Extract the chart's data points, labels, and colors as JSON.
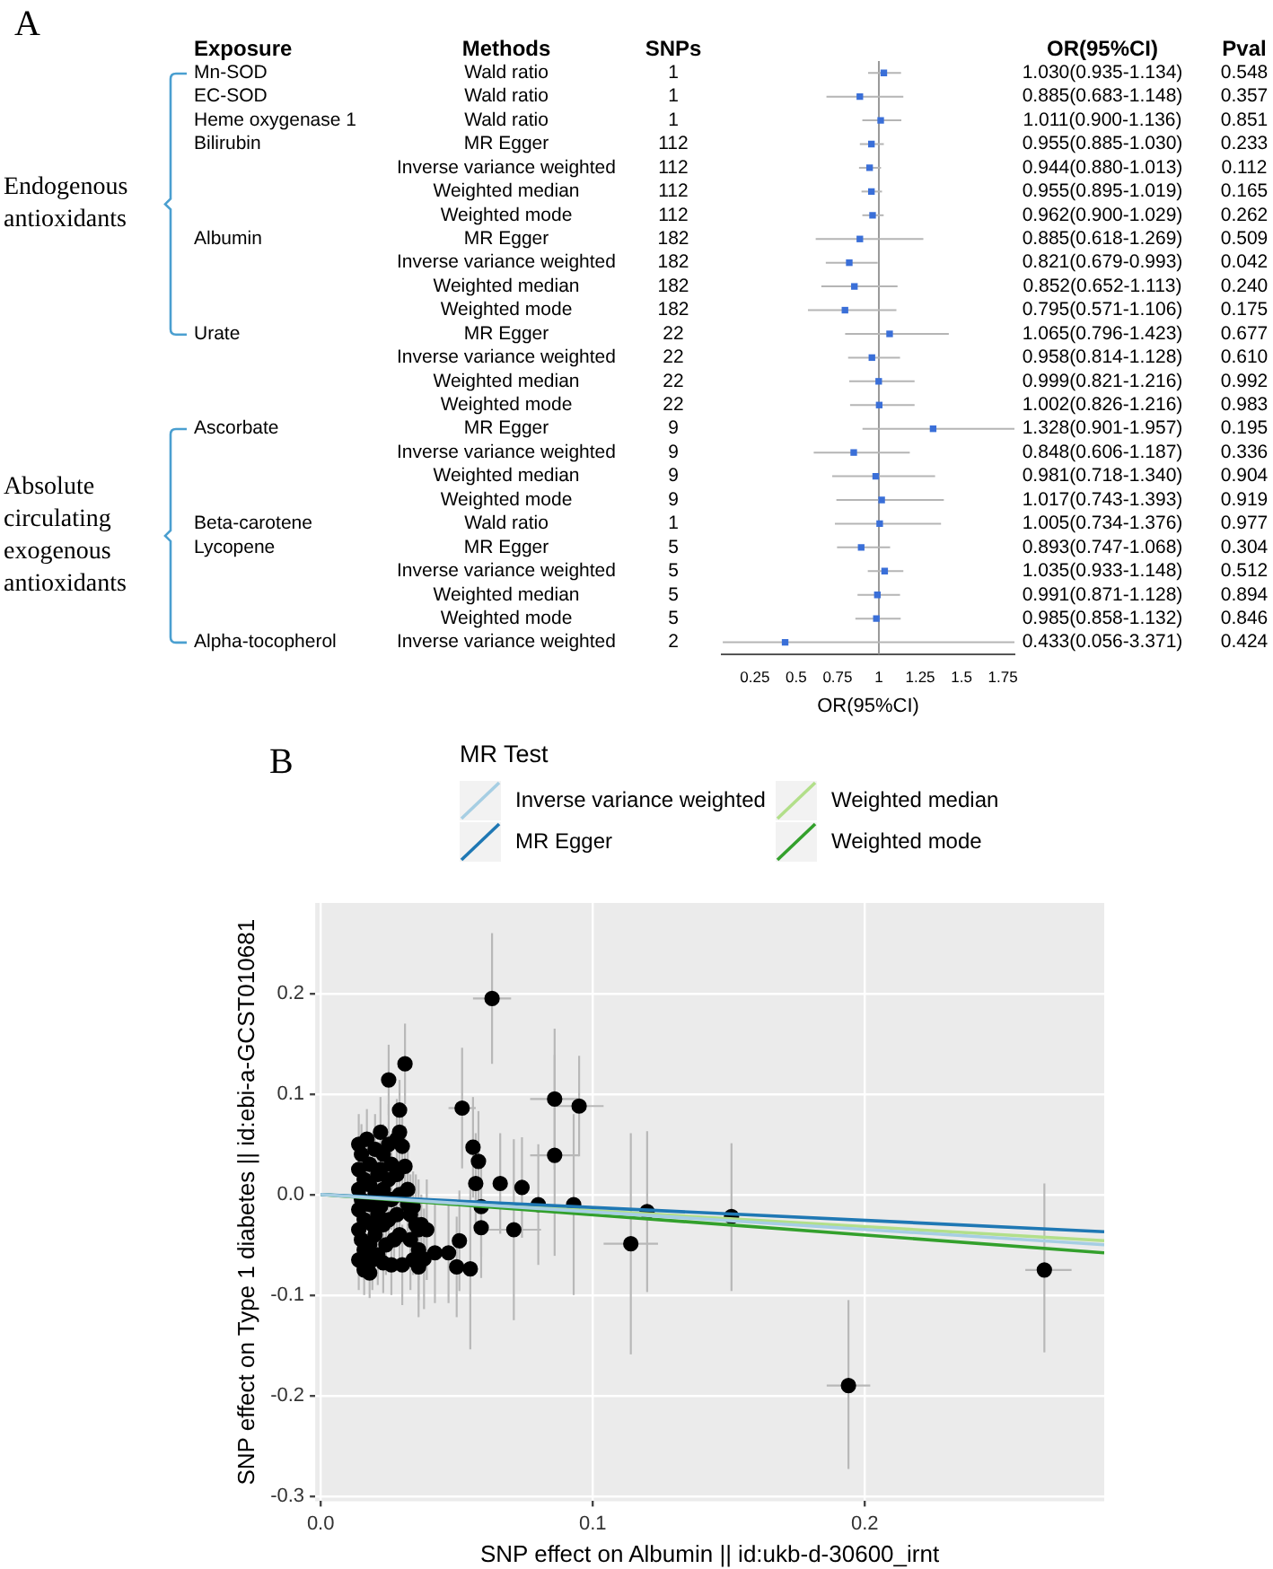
{
  "chart_data": [
    {
      "type": "scatter",
      "orientation": "horizontal",
      "marker": "square",
      "xlabel": "OR(95%CI)",
      "xlim": [
        0.05,
        1.82
      ],
      "xticks": [
        0.25,
        0.5,
        0.75,
        1,
        1.25,
        1.5,
        1.75
      ],
      "ref_lines": [
        {
          "axis": "x",
          "value": 1,
          "color": "#999999"
        }
      ],
      "categories": [
        "Wald ratio",
        "Wald ratio",
        "Wald ratio",
        "MR Egger",
        "Inverse variance weighted",
        "Weighted median",
        "Weighted mode",
        "MR Egger",
        "Inverse variance weighted",
        "Weighted median",
        "Weighted mode",
        "MR Egger",
        "Inverse variance weighted",
        "Weighted median",
        "Weighted mode",
        "MR Egger",
        "Inverse variance weighted",
        "Weighted median",
        "Weighted mode",
        "Wald ratio",
        "MR Egger",
        "Inverse variance weighted",
        "Weighted median",
        "Weighted mode",
        "Inverse variance weighted"
      ],
      "annotations": [
        "A",
        "Exposure",
        "Methods",
        "SNPs",
        "OR(95%CI)",
        "Pval",
        "Endogenous antioxidants",
        "Absolute circulating exogenous antioxidants",
        "1",
        "1",
        "1",
        "112",
        "112",
        "112",
        "112",
        "182",
        "182",
        "182",
        "182",
        "22",
        "22",
        "22",
        "22",
        "9",
        "9",
        "9",
        "9",
        "1",
        "5",
        "5",
        "5",
        "5",
        "2",
        "0.548",
        "0.357",
        "0.851",
        "0.233",
        "0.112",
        "0.165",
        "0.262",
        "0.509",
        "0.042",
        "0.240",
        "0.175",
        "0.677",
        "0.610",
        "0.992",
        "0.983",
        "0.195",
        "0.336",
        "0.904",
        "0.919",
        "0.977",
        "0.304",
        "0.512",
        "0.894",
        "0.846",
        "0.424",
        "Mn-SOD",
        "EC-SOD",
        "Heme oxygenase 1",
        "Bilirubin",
        "Albumin",
        "Urate",
        "Ascorbate",
        "Beta-carotene",
        "Lycopene",
        "Alpha-tocopherol",
        "1.030(0.935-1.134)",
        "0.885(0.683-1.148)",
        "1.011(0.900-1.136)",
        "0.955(0.885-1.030)",
        "0.944(0.880-1.013)",
        "0.955(0.895-1.019)",
        "0.962(0.900-1.029)",
        "0.885(0.618-1.269)",
        "0.821(0.679-0.993)",
        "0.852(0.652-1.113)",
        "0.795(0.571-1.106)",
        "1.065(0.796-1.423)",
        "0.958(0.814-1.128)",
        "0.999(0.821-1.216)",
        "1.002(0.826-1.216)",
        "1.328(0.901-1.957)",
        "0.848(0.606-1.187)",
        "0.981(0.718-1.340)",
        "1.017(0.743-1.393)",
        "1.005(0.734-1.376)",
        "0.893(0.747-1.068)",
        "1.035(0.933-1.148)",
        "0.991(0.871-1.128)",
        "0.985(0.858-1.132)",
        "0.433(0.056-3.371)"
      ],
      "series": [
        {
          "color": "#3a6fd8",
          "values": [
            1.03,
            null,
            null,
            null,
            null,
            null,
            null,
            null,
            null,
            null,
            null,
            null,
            null,
            null,
            null,
            null,
            null,
            null,
            null,
            null,
            null,
            null,
            null,
            null,
            null
          ],
          "errors": [
            [
              0.935,
              1.134
            ],
            null,
            null,
            null,
            null,
            null,
            null,
            null,
            null,
            null,
            null,
            null,
            null,
            null,
            null,
            null,
            null,
            null,
            null,
            null,
            null,
            null,
            null,
            null,
            null
          ]
        },
        {
          "color": "#3a6fd8",
          "values": [
            null,
            0.885,
            null,
            null,
            null,
            null,
            null,
            null,
            null,
            null,
            null,
            null,
            null,
            null,
            null,
            null,
            null,
            null,
            null,
            null,
            null,
            null,
            null,
            null,
            null
          ],
          "errors": [
            null,
            [
              0.683,
              1.148
            ],
            null,
            null,
            null,
            null,
            null,
            null,
            null,
            null,
            null,
            null,
            null,
            null,
            null,
            null,
            null,
            null,
            null,
            null,
            null,
            null,
            null,
            null,
            null
          ]
        },
        {
          "color": "#3a6fd8",
          "values": [
            null,
            null,
            1.011,
            null,
            null,
            null,
            null,
            null,
            null,
            null,
            null,
            null,
            null,
            null,
            null,
            null,
            null,
            null,
            null,
            null,
            null,
            null,
            null,
            null,
            null
          ],
          "errors": [
            null,
            null,
            [
              0.9,
              1.136
            ],
            null,
            null,
            null,
            null,
            null,
            null,
            null,
            null,
            null,
            null,
            null,
            null,
            null,
            null,
            null,
            null,
            null,
            null,
            null,
            null,
            null,
            null
          ]
        },
        {
          "color": "#3a6fd8",
          "values": [
            null,
            null,
            null,
            0.955,
            0.944,
            0.955,
            0.962,
            null,
            null,
            null,
            null,
            null,
            null,
            null,
            null,
            null,
            null,
            null,
            null,
            null,
            null,
            null,
            null,
            null,
            null
          ],
          "errors": [
            null,
            null,
            null,
            [
              0.885,
              1.03
            ],
            [
              0.88,
              1.013
            ],
            [
              0.895,
              1.019
            ],
            [
              0.9,
              1.029
            ],
            null,
            null,
            null,
            null,
            null,
            null,
            null,
            null,
            null,
            null,
            null,
            null,
            null,
            null,
            null,
            null,
            null,
            null
          ]
        },
        {
          "color": "#3a6fd8",
          "values": [
            null,
            null,
            null,
            null,
            null,
            null,
            null,
            0.885,
            0.821,
            0.852,
            0.795,
            null,
            null,
            null,
            null,
            null,
            null,
            null,
            null,
            null,
            null,
            null,
            null,
            null,
            null
          ],
          "errors": [
            null,
            null,
            null,
            null,
            null,
            null,
            null,
            [
              0.618,
              1.269
            ],
            [
              0.679,
              0.993
            ],
            [
              0.652,
              1.113
            ],
            [
              0.571,
              1.106
            ],
            null,
            null,
            null,
            null,
            null,
            null,
            null,
            null,
            null,
            null,
            null,
            null,
            null,
            null
          ]
        },
        {
          "color": "#3a6fd8",
          "values": [
            null,
            null,
            null,
            null,
            null,
            null,
            null,
            null,
            null,
            null,
            null,
            1.065,
            0.958,
            0.999,
            1.002,
            null,
            null,
            null,
            null,
            null,
            null,
            null,
            null,
            null,
            null
          ],
          "errors": [
            null,
            null,
            null,
            null,
            null,
            null,
            null,
            null,
            null,
            null,
            null,
            [
              0.796,
              1.423
            ],
            [
              0.814,
              1.128
            ],
            [
              0.821,
              1.216
            ],
            [
              0.826,
              1.216
            ],
            null,
            null,
            null,
            null,
            null,
            null,
            null,
            null,
            null,
            null
          ]
        },
        {
          "color": "#3a6fd8",
          "values": [
            null,
            null,
            null,
            null,
            null,
            null,
            null,
            null,
            null,
            null,
            null,
            null,
            null,
            null,
            null,
            1.328,
            0.848,
            0.981,
            1.017,
            null,
            null,
            null,
            null,
            null,
            null
          ],
          "errors": [
            null,
            null,
            null,
            null,
            null,
            null,
            null,
            null,
            null,
            null,
            null,
            null,
            null,
            null,
            null,
            [
              0.901,
              1.82
            ],
            [
              0.606,
              1.187
            ],
            [
              0.718,
              1.34
            ],
            [
              0.743,
              1.393
            ],
            null,
            null,
            null,
            null,
            null,
            null
          ]
        },
        {
          "color": "#3a6fd8",
          "values": [
            null,
            null,
            null,
            null,
            null,
            null,
            null,
            null,
            null,
            null,
            null,
            null,
            null,
            null,
            null,
            null,
            null,
            null,
            null,
            1.005,
            null,
            null,
            null,
            null,
            null
          ],
          "errors": [
            null,
            null,
            null,
            null,
            null,
            null,
            null,
            null,
            null,
            null,
            null,
            null,
            null,
            null,
            null,
            null,
            null,
            null,
            null,
            [
              0.734,
              1.376
            ],
            null,
            null,
            null,
            null,
            null
          ]
        },
        {
          "color": "#3a6fd8",
          "values": [
            null,
            null,
            null,
            null,
            null,
            null,
            null,
            null,
            null,
            null,
            null,
            null,
            null,
            null,
            null,
            null,
            null,
            null,
            null,
            null,
            0.893,
            1.035,
            0.991,
            0.985,
            null
          ],
          "errors": [
            null,
            null,
            null,
            null,
            null,
            null,
            null,
            null,
            null,
            null,
            null,
            null,
            null,
            null,
            null,
            null,
            null,
            null,
            null,
            null,
            [
              0.747,
              1.068
            ],
            [
              0.933,
              1.148
            ],
            [
              0.871,
              1.128
            ],
            [
              0.858,
              1.132
            ],
            null
          ]
        },
        {
          "color": "#3a6fd8",
          "values": [
            null,
            null,
            null,
            null,
            null,
            null,
            null,
            null,
            null,
            null,
            null,
            null,
            null,
            null,
            null,
            null,
            null,
            null,
            null,
            null,
            null,
            null,
            null,
            null,
            0.433
          ],
          "errors": [
            null,
            null,
            null,
            null,
            null,
            null,
            null,
            null,
            null,
            null,
            null,
            null,
            null,
            null,
            null,
            null,
            null,
            null,
            null,
            null,
            null,
            null,
            null,
            null,
            [
              0.056,
              1.82
            ]
          ]
        }
      ]
    },
    {
      "type": "scatter",
      "grid": true,
      "legend": "top",
      "legend_title": "MR Test",
      "annotations": [
        "B"
      ],
      "xlabel": "SNP effect on Albumin || id:ukb-d-30600_irnt",
      "ylabel": "SNP effect on Type 1 diabetes || id:ebi-a-GCST010681",
      "xlim": [
        -0.002,
        0.288
      ],
      "xticks": [
        {
          "value": 0,
          "label": "0.0"
        },
        0.1,
        0.2
      ],
      "ylim": [
        -0.305,
        0.29
      ],
      "yticks": [
        -0.3,
        -0.2,
        -0.1,
        {
          "value": 0,
          "label": "0.0"
        },
        0.1,
        0.2
      ],
      "series": [
        {
          "type": "scatter",
          "color": "#000000",
          "marker": "circle",
          "x": [
            0.014,
            0.015,
            0.014,
            0.016,
            0.014,
            0.015,
            0.014,
            0.016,
            0.014,
            0.015,
            0.016,
            0.014,
            0.016,
            0.018,
            0.017,
            0.018,
            0.018,
            0.018,
            0.019,
            0.018,
            0.019,
            0.02,
            0.021,
            0.02,
            0.021,
            0.02,
            0.021,
            0.022,
            0.023,
            0.022,
            0.023,
            0.022,
            0.023,
            0.024,
            0.023,
            0.025,
            0.026,
            0.025,
            0.026,
            0.025,
            0.027,
            0.026,
            0.028,
            0.028,
            0.029,
            0.028,
            0.029,
            0.03,
            0.03,
            0.031,
            0.032,
            0.032,
            0.033,
            0.034,
            0.033,
            0.035,
            0.036,
            0.036,
            0.037,
            0.034,
            0.025,
            0.031,
            0.029,
            0.029,
            0.052,
            0.086,
            0.095,
            0.086,
            0.056,
            0.058,
            0.057,
            0.066,
            0.074,
            0.08,
            0.093,
            0.12,
            0.151,
            0.059,
            0.114,
            0.071,
            0.059,
            0.055,
            0.05,
            0.051,
            0.047,
            0.042,
            0.036,
            0.038,
            0.039,
            0.194,
            0.266,
            0.063
          ],
          "values": [
            0.05,
            0.04,
            0.025,
            0.015,
            0.005,
            -0.005,
            -0.015,
            -0.025,
            -0.035,
            -0.045,
            -0.055,
            -0.065,
            -0.075,
            -0.078,
            0.055,
            0.03,
            0.01,
            -0.01,
            -0.03,
            -0.05,
            -0.065,
            0.045,
            0.02,
            0.0,
            -0.02,
            -0.04,
            -0.06,
            0.062,
            0.04,
            0.025,
            0.005,
            -0.012,
            -0.03,
            -0.05,
            -0.068,
            0.05,
            0.03,
            0.015,
            -0.005,
            -0.025,
            -0.045,
            -0.07,
            0.055,
            0.02,
            0.0,
            -0.02,
            -0.04,
            -0.07,
            0.048,
            0.028,
            0.005,
            -0.01,
            -0.02,
            -0.012,
            -0.045,
            -0.03,
            -0.035,
            -0.055,
            -0.03,
            -0.065,
            0.114,
            0.13,
            0.084,
            0.062,
            0.086,
            0.095,
            0.088,
            0.039,
            0.047,
            0.033,
            0.011,
            0.011,
            0.007,
            -0.01,
            -0.01,
            -0.017,
            -0.022,
            -0.012,
            -0.049,
            -0.035,
            -0.033,
            -0.074,
            -0.072,
            -0.046,
            -0.058,
            -0.058,
            -0.072,
            -0.064,
            -0.035,
            -0.19,
            -0.075,
            0.195
          ],
          "errors": [
            0.03,
            0.03,
            0.03,
            0.03,
            0.03,
            0.03,
            0.03,
            0.03,
            0.03,
            0.03,
            0.03,
            0.03,
            0.025,
            0.025,
            0.03,
            0.03,
            0.03,
            0.03,
            0.03,
            0.03,
            0.03,
            0.035,
            0.03,
            0.03,
            0.03,
            0.03,
            0.03,
            0.035,
            0.03,
            0.03,
            0.03,
            0.03,
            0.03,
            0.03,
            0.03,
            0.04,
            0.03,
            0.03,
            0.03,
            0.03,
            0.03,
            0.03,
            0.04,
            0.03,
            0.03,
            0.03,
            0.03,
            0.04,
            0.04,
            0.04,
            0.04,
            0.04,
            0.04,
            0.035,
            0.05,
            0.05,
            0.05,
            0.05,
            0.03,
            0.015,
            0.035,
            0.04,
            0.03,
            0.03,
            0.06,
            0.07,
            0.05,
            0.1,
            0.05,
            0.05,
            0.05,
            0.05,
            0.05,
            0.06,
            0.09,
            0.08,
            [
              -0.096,
              0.051
            ],
            0.05,
            0.11,
            0.09,
            0.05,
            0.08,
            0.05,
            0.05,
            0.05,
            0.05,
            0.05,
            0.05,
            0.05,
            [
              -0.273,
              -0.105
            ],
            [
              -0.157,
              0.011
            ],
            [
              0.13,
              0.26
            ]
          ],
          "xerrors": [
            null,
            null,
            null,
            null,
            null,
            null,
            null,
            null,
            null,
            null,
            null,
            null,
            null,
            null,
            null,
            null,
            null,
            null,
            null,
            null,
            null,
            null,
            null,
            null,
            null,
            null,
            null,
            null,
            null,
            null,
            null,
            null,
            null,
            null,
            null,
            null,
            null,
            null,
            null,
            null,
            null,
            null,
            null,
            null,
            null,
            null,
            null,
            null,
            null,
            null,
            null,
            null,
            null,
            null,
            null,
            null,
            null,
            null,
            null,
            null,
            null,
            null,
            null,
            null,
            0.005,
            0.009,
            0.009,
            0.009,
            null,
            null,
            null,
            null,
            null,
            null,
            null,
            null,
            null,
            null,
            0.01,
            0.01,
            null,
            null,
            null,
            null,
            null,
            null,
            null,
            null,
            null,
            [
              0.186,
              0.202
            ],
            [
              0.259,
              0.276
            ],
            [
              0.056,
              0.07
            ]
          ]
        },
        {
          "type": "line",
          "name": "Inverse variance weighted",
          "color": "#a6cee3",
          "x": [
            0,
            0.288
          ],
          "values": [
            0,
            -0.05
          ]
        },
        {
          "type": "line",
          "name": "MR Egger",
          "color": "#1f78b4",
          "x": [
            0,
            0.288
          ],
          "values": [
            0,
            -0.037
          ]
        },
        {
          "type": "line",
          "name": "Weighted median",
          "color": "#b2df8a",
          "x": [
            0,
            0.288
          ],
          "values": [
            0,
            -0.046
          ]
        },
        {
          "type": "line",
          "name": "Weighted mode",
          "color": "#33a02c",
          "x": [
            0,
            0.288
          ],
          "values": [
            0,
            -0.058
          ]
        }
      ]
    }
  ]
}
